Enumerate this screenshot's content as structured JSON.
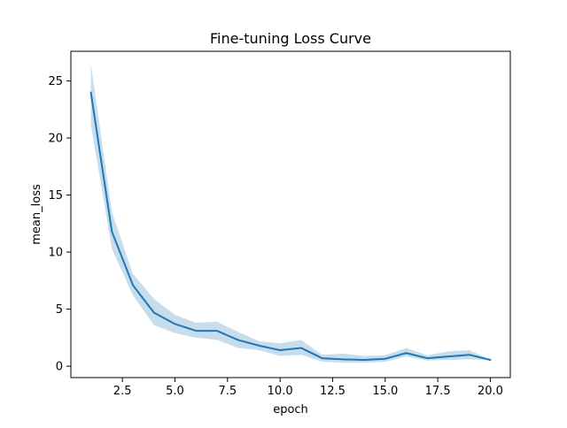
{
  "chart_data": {
    "type": "line",
    "title": "Fine-tuning Loss Curve",
    "xlabel": "epoch",
    "ylabel": "mean_loss",
    "xlim": [
      0.05,
      20.95
    ],
    "ylim": [
      -1.0,
      27.6
    ],
    "x_ticks": [
      2.5,
      5.0,
      7.5,
      10.0,
      12.5,
      15.0,
      17.5,
      20.0
    ],
    "x_tick_labels": [
      "2.5",
      "5.0",
      "7.5",
      "10.0",
      "12.5",
      "15.0",
      "17.5",
      "20.0"
    ],
    "y_ticks": [
      0,
      5,
      10,
      15,
      20,
      25
    ],
    "y_tick_labels": [
      "0",
      "5",
      "10",
      "15",
      "20",
      "25"
    ],
    "grid": false,
    "series": [
      {
        "color": "#1f77b4",
        "band_color": "#1f77b4",
        "x": [
          1,
          2,
          3,
          4,
          5,
          6,
          7,
          8,
          9,
          10,
          11,
          12,
          13,
          14,
          15,
          16,
          17,
          18,
          19,
          20
        ],
        "y": [
          24.0,
          11.8,
          7.1,
          4.7,
          3.7,
          3.1,
          3.1,
          2.3,
          1.8,
          1.4,
          1.6,
          0.7,
          0.6,
          0.55,
          0.65,
          1.15,
          0.7,
          0.85,
          1.0,
          0.55
        ],
        "ci_lower": [
          21.2,
          10.3,
          6.2,
          3.6,
          2.9,
          2.5,
          2.3,
          1.6,
          1.4,
          0.9,
          1.0,
          0.4,
          0.3,
          0.3,
          0.4,
          0.85,
          0.5,
          0.55,
          0.6,
          0.55
        ],
        "ci_upper": [
          26.5,
          13.5,
          8.1,
          5.9,
          4.5,
          3.8,
          3.9,
          3.0,
          2.2,
          2.0,
          2.3,
          1.0,
          1.1,
          0.9,
          0.95,
          1.6,
          0.95,
          1.3,
          1.4,
          0.55
        ]
      }
    ]
  }
}
